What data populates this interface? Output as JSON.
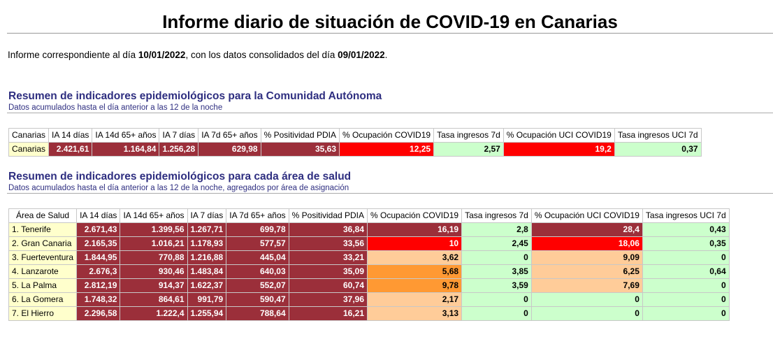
{
  "title": "Informe diario de situación de COVID-19 en Canarias",
  "intro": {
    "prefix": "Informe correspondiente al día ",
    "report_date": "10/01/2022",
    "middle": ", con los datos consolidados del día ",
    "data_date": "09/01/2022",
    "suffix": "."
  },
  "section1": {
    "title": "Resumen de indicadores epidemiológicos para la Comunidad Autónoma",
    "subtitle": "Datos acumulados hasta el día anterior a las 12 de la noche",
    "headers": [
      "Canarias",
      "IA 14 días",
      "IA 14d 65+ años",
      "IA 7 días",
      "IA 7d 65+ años",
      "% Positividad PDIA",
      "% Ocupación COVID19",
      "Tasa ingresos 7d",
      "% Ocupación UCI COVID19",
      "Tasa ingresos UCI 7d"
    ],
    "row": [
      "Canarias",
      "2.421,61",
      "1.164,84",
      "1.256,28",
      "629,98",
      "35,63",
      "12,25",
      "2,57",
      "19,2",
      "0,37"
    ],
    "row_colors": [
      "name",
      "dark",
      "dark",
      "dark",
      "dark",
      "dark",
      "red",
      "green",
      "red",
      "green"
    ]
  },
  "section2": {
    "title": "Resumen de indicadores epidemiológicos para cada área de salud",
    "subtitle": "Datos acumulados hasta el día anterior a las 12 de la noche, agregados por área de asignación",
    "headers": [
      "Área de Salud",
      "IA 14 días",
      "IA 14d 65+ años",
      "IA 7 días",
      "IA 7d 65+ años",
      "% Positividad PDIA",
      "% Ocupación COVID19",
      "Tasa ingresos 7d",
      "% Ocupación UCI COVID19",
      "Tasa ingresos UCI 7d"
    ],
    "rows": [
      [
        "1. Tenerife",
        "2.671,43",
        "1.399,56",
        "1.267,71",
        "699,78",
        "36,84",
        "16,19",
        "2,8",
        "28,4",
        "0,43"
      ],
      [
        "2. Gran Canaria",
        "2.165,35",
        "1.016,21",
        "1.178,93",
        "577,57",
        "33,56",
        "10",
        "2,45",
        "18,06",
        "0,35"
      ],
      [
        "3. Fuerteventura",
        "1.844,95",
        "770,88",
        "1.216,88",
        "445,04",
        "33,21",
        "3,62",
        "0",
        "9,09",
        "0"
      ],
      [
        "4. Lanzarote",
        "2.676,3",
        "930,46",
        "1.483,84",
        "640,03",
        "35,09",
        "5,68",
        "3,85",
        "6,25",
        "0,64"
      ],
      [
        "5. La Palma",
        "2.812,19",
        "914,37",
        "1.622,37",
        "552,07",
        "60,74",
        "9,78",
        "3,59",
        "7,69",
        "0"
      ],
      [
        "6. La Gomera",
        "1.748,32",
        "864,61",
        "991,79",
        "590,47",
        "37,96",
        "2,17",
        "0",
        "0",
        "0"
      ],
      [
        "7. El Hierro",
        "2.296,58",
        "1.222,4",
        "1.255,94",
        "788,64",
        "16,21",
        "3,13",
        "0",
        "0",
        "0"
      ]
    ],
    "row_colors": [
      [
        "name",
        "dark",
        "dark",
        "dark",
        "dark",
        "dark",
        "dark",
        "green",
        "dark",
        "green"
      ],
      [
        "name",
        "dark",
        "dark",
        "dark",
        "dark",
        "dark",
        "red",
        "green",
        "red",
        "green"
      ],
      [
        "name",
        "dark",
        "dark",
        "dark",
        "dark",
        "dark",
        "peach",
        "green",
        "peach",
        "green"
      ],
      [
        "name",
        "dark",
        "dark",
        "dark",
        "dark",
        "dark",
        "orange",
        "green",
        "peach",
        "green"
      ],
      [
        "name",
        "dark",
        "dark",
        "dark",
        "dark",
        "dark",
        "orange",
        "green",
        "peach",
        "green"
      ],
      [
        "name",
        "dark",
        "dark",
        "dark",
        "dark",
        "dark",
        "peach",
        "green",
        "green",
        "green"
      ],
      [
        "name",
        "dark",
        "dark",
        "dark",
        "dark",
        "dark",
        "peach",
        "green",
        "green",
        "green"
      ]
    ]
  },
  "colors": {
    "dark": "#9b2f3a",
    "red": "#ff0000",
    "green": "#ccffcc",
    "peach": "#ffcc99",
    "orange": "#ff9933",
    "name": "#ffffcc",
    "section_title": "#2e2e80"
  }
}
